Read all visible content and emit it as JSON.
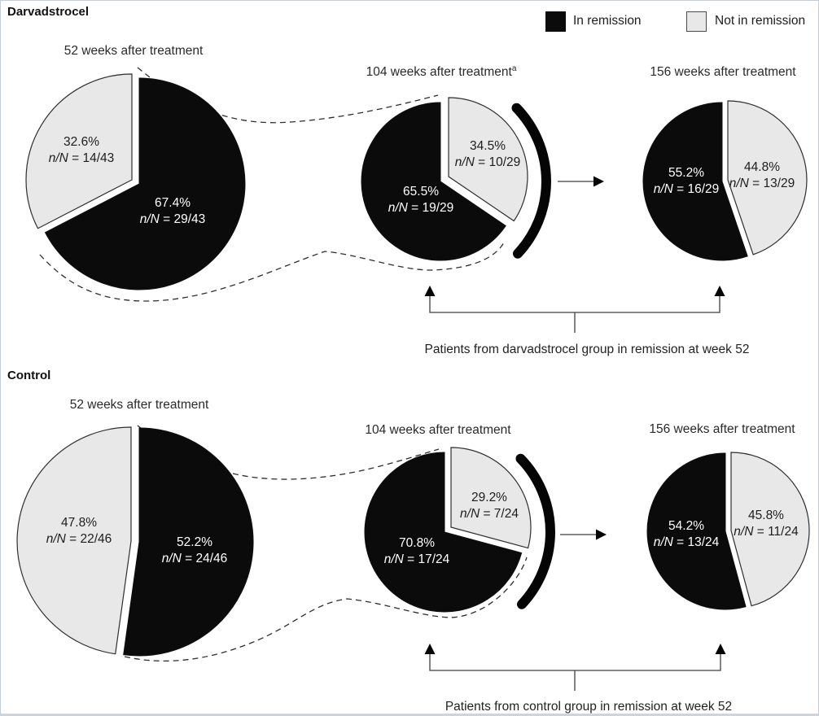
{
  "legend": {
    "in_remission": "In remission",
    "not_in_remission": "Not in remission"
  },
  "colors": {
    "in_remission": "#0b0b0b",
    "not_in_remission": "#e8e8e8"
  },
  "ratio_prefix": "n/N",
  "groups": [
    {
      "title": "Darvadstrocel",
      "caption": "Patients from darvadstrocel group in remission at week 52",
      "pies": [
        {
          "title": "52 weeks after treatment",
          "title_sup": "",
          "black_pct": "67.4%",
          "black_ratio": " = 29/43",
          "gray_pct": "32.6%",
          "gray_ratio": " = 14/43"
        },
        {
          "title": "104 weeks after treatment",
          "title_sup": "a",
          "black_pct": "65.5%",
          "black_ratio": " = 19/29",
          "gray_pct": "34.5%",
          "gray_ratio": " = 10/29"
        },
        {
          "title": "156 weeks after treatment",
          "title_sup": "",
          "black_pct": "55.2%",
          "black_ratio": " = 16/29",
          "gray_pct": "44.8%",
          "gray_ratio": " = 13/29"
        }
      ]
    },
    {
      "title": "Control",
      "caption": "Patients from control group in remission at week 52",
      "pies": [
        {
          "title": "52 weeks after treatment",
          "title_sup": "",
          "black_pct": "52.2%",
          "black_ratio": " = 24/46",
          "gray_pct": "47.8%",
          "gray_ratio": " = 22/46"
        },
        {
          "title": "104 weeks after treatment",
          "title_sup": "",
          "black_pct": "70.8%",
          "black_ratio": " = 17/24",
          "gray_pct": "29.2%",
          "gray_ratio": " = 7/24"
        },
        {
          "title": "156 weeks after treatment",
          "title_sup": "",
          "black_pct": "54.2%",
          "black_ratio": " = 13/24",
          "gray_pct": "45.8%",
          "gray_ratio": " = 11/24"
        }
      ]
    }
  ],
  "chart_data": [
    {
      "group": "Darvadstrocel",
      "type": "pie",
      "legend": [
        "In remission",
        "Not in remission"
      ],
      "annotation": "Patients from darvadstrocel group in remission at week 52",
      "series": [
        {
          "weeks": 52,
          "title": "52 weeks after treatment",
          "slices": [
            {
              "label": "In remission",
              "pct": 67.4,
              "n": 29,
              "N": 43
            },
            {
              "label": "Not in remission",
              "pct": 32.6,
              "n": 14,
              "N": 43
            }
          ]
        },
        {
          "weeks": 104,
          "title": "104 weeks after treatment",
          "footnote": "a",
          "slices": [
            {
              "label": "In remission",
              "pct": 65.5,
              "n": 19,
              "N": 29
            },
            {
              "label": "Not in remission",
              "pct": 34.5,
              "n": 10,
              "N": 29
            }
          ]
        },
        {
          "weeks": 156,
          "title": "156 weeks after treatment",
          "slices": [
            {
              "label": "In remission",
              "pct": 55.2,
              "n": 16,
              "N": 29
            },
            {
              "label": "Not in remission",
              "pct": 44.8,
              "n": 13,
              "N": 29
            }
          ]
        }
      ]
    },
    {
      "group": "Control",
      "type": "pie",
      "legend": [
        "In remission",
        "Not in remission"
      ],
      "annotation": "Patients from control group in remission at week 52",
      "series": [
        {
          "weeks": 52,
          "title": "52 weeks after treatment",
          "slices": [
            {
              "label": "In remission",
              "pct": 52.2,
              "n": 24,
              "N": 46
            },
            {
              "label": "Not in remission",
              "pct": 47.8,
              "n": 22,
              "N": 46
            }
          ]
        },
        {
          "weeks": 104,
          "title": "104 weeks after treatment",
          "slices": [
            {
              "label": "In remission",
              "pct": 70.8,
              "n": 17,
              "N": 24
            },
            {
              "label": "Not in remission",
              "pct": 29.2,
              "n": 7,
              "N": 24
            }
          ]
        },
        {
          "weeks": 156,
          "title": "156 weeks after treatment",
          "slices": [
            {
              "label": "In remission",
              "pct": 54.2,
              "n": 13,
              "N": 24
            },
            {
              "label": "Not in remission",
              "pct": 45.8,
              "n": 11,
              "N": 24
            }
          ]
        }
      ]
    }
  ]
}
